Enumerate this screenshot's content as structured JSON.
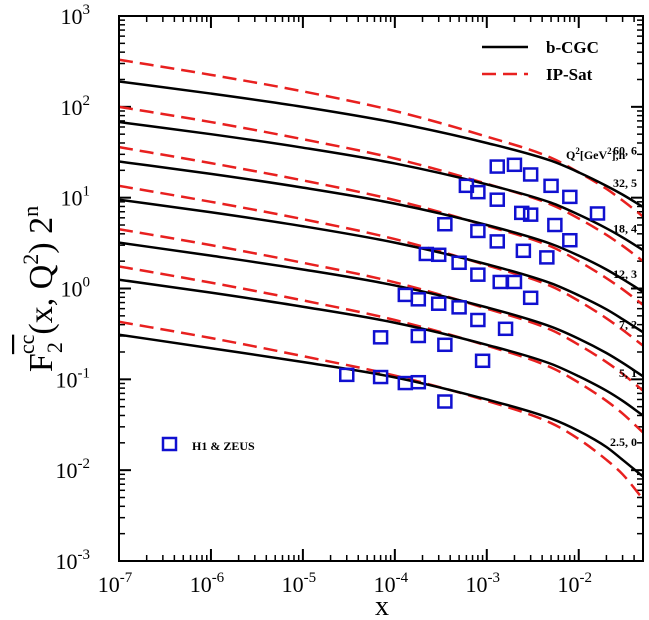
{
  "chart_data": {
    "type": "line",
    "xscale": "log",
    "yscale": "log",
    "xlim": [
      1e-07,
      0.05
    ],
    "ylim": [
      0.001,
      1000
    ],
    "xlabel": "x",
    "x_ticks": [
      {
        "base": "10",
        "exp": "-7",
        "value": 1e-07
      },
      {
        "base": "10",
        "exp": "-6",
        "value": 1e-06
      },
      {
        "base": "10",
        "exp": "-5",
        "value": 1e-05
      },
      {
        "base": "10",
        "exp": "-4",
        "value": 0.0001
      },
      {
        "base": "10",
        "exp": "-3",
        "value": 0.001
      },
      {
        "base": "10",
        "exp": "-2",
        "value": 0.01
      }
    ],
    "y_ticks": [
      {
        "base": "10",
        "exp": "-3",
        "value": 0.001
      },
      {
        "base": "10",
        "exp": "-2",
        "value": 0.01
      },
      {
        "base": "10",
        "exp": "-1",
        "value": 0.1
      },
      {
        "base": "10",
        "exp": "0",
        "value": 1
      },
      {
        "base": "10",
        "exp": "1",
        "value": 10
      },
      {
        "base": "10",
        "exp": "2",
        "value": 100
      },
      {
        "base": "10",
        "exp": "3",
        "value": 1000
      }
    ],
    "ylabel_parts": {
      "F": "F",
      "sub": "2",
      "cc": "cc",
      "rest": "(x, Q",
      "q_exp": "2",
      "close": ") 2",
      "n_exp": "n"
    },
    "legend": [
      {
        "name": "b-CGC",
        "style": "solid",
        "color": "#000000"
      },
      {
        "name": "IP-Sat",
        "style": "dashed",
        "color": "#e8201f"
      }
    ],
    "points_legend": {
      "name": "H1 & ZEUS",
      "color": "#1010d0"
    },
    "annotation_header": {
      "q": "Q",
      "q_exp": "2",
      "unit": "[GeV",
      "unit_exp": "2",
      "tail": "],n"
    },
    "series": [
      {
        "label": "2.5, 0",
        "label_y": 0.0205,
        "bcgc": [
          [
            1e-07,
            0.31
          ],
          [
            1e-06,
            0.22
          ],
          [
            1e-05,
            0.155
          ],
          [
            0.0001,
            0.105
          ],
          [
            0.001,
            0.06
          ],
          [
            0.005,
            0.037
          ],
          [
            0.01,
            0.027
          ],
          [
            0.02,
            0.018
          ],
          [
            0.03,
            0.013
          ],
          [
            0.05,
            0.0085
          ]
        ],
        "ipsat": [
          [
            1e-07,
            0.43
          ],
          [
            1e-06,
            0.285
          ],
          [
            1e-05,
            0.18
          ],
          [
            0.0001,
            0.11
          ],
          [
            0.001,
            0.058
          ],
          [
            0.005,
            0.033
          ],
          [
            0.01,
            0.022
          ],
          [
            0.02,
            0.013
          ],
          [
            0.03,
            0.009
          ],
          [
            0.05,
            0.0048
          ]
        ]
      },
      {
        "label": "5, 1",
        "label_y": 0.118,
        "bcgc": [
          [
            1e-07,
            1.25
          ],
          [
            1e-06,
            0.9
          ],
          [
            1e-05,
            0.63
          ],
          [
            0.0001,
            0.42
          ],
          [
            0.001,
            0.24
          ],
          [
            0.005,
            0.148
          ],
          [
            0.01,
            0.108
          ],
          [
            0.02,
            0.075
          ],
          [
            0.03,
            0.058
          ],
          [
            0.05,
            0.04
          ]
        ],
        "ipsat": [
          [
            1e-07,
            1.75
          ],
          [
            1e-06,
            1.16
          ],
          [
            1e-05,
            0.74
          ],
          [
            0.0001,
            0.45
          ],
          [
            0.001,
            0.235
          ],
          [
            0.005,
            0.135
          ],
          [
            0.01,
            0.092
          ],
          [
            0.02,
            0.058
          ],
          [
            0.03,
            0.042
          ],
          [
            0.05,
            0.026
          ]
        ]
      },
      {
        "label": "7, 2",
        "label_y": 0.4,
        "bcgc": [
          [
            1e-07,
            3.2
          ],
          [
            1e-06,
            2.3
          ],
          [
            1e-05,
            1.62
          ],
          [
            0.0001,
            1.08
          ],
          [
            0.001,
            0.62
          ],
          [
            0.005,
            0.38
          ],
          [
            0.01,
            0.28
          ],
          [
            0.02,
            0.195
          ],
          [
            0.03,
            0.152
          ],
          [
            0.05,
            0.108
          ]
        ],
        "ipsat": [
          [
            1e-07,
            4.5
          ],
          [
            1e-06,
            3.0
          ],
          [
            1e-05,
            1.92
          ],
          [
            0.0001,
            1.17
          ],
          [
            0.001,
            0.6
          ],
          [
            0.005,
            0.35
          ],
          [
            0.01,
            0.24
          ],
          [
            0.02,
            0.155
          ],
          [
            0.03,
            0.115
          ],
          [
            0.05,
            0.075
          ]
        ]
      },
      {
        "label": "12, 3",
        "label_y": 1.45,
        "bcgc": [
          [
            1e-07,
            9.5
          ],
          [
            1e-06,
            6.9
          ],
          [
            1e-05,
            4.85
          ],
          [
            0.0001,
            3.2
          ],
          [
            0.001,
            1.85
          ],
          [
            0.005,
            1.14
          ],
          [
            0.01,
            0.84
          ],
          [
            0.02,
            0.59
          ],
          [
            0.03,
            0.46
          ],
          [
            0.05,
            0.33
          ]
        ],
        "ipsat": [
          [
            1e-07,
            13.5
          ],
          [
            1e-06,
            9.0
          ],
          [
            1e-05,
            5.8
          ],
          [
            0.0001,
            3.5
          ],
          [
            0.001,
            1.8
          ],
          [
            0.005,
            1.06
          ],
          [
            0.01,
            0.73
          ],
          [
            0.02,
            0.47
          ],
          [
            0.03,
            0.35
          ],
          [
            0.05,
            0.235
          ]
        ]
      },
      {
        "label": "18, 4",
        "label_y": 4.6,
        "bcgc": [
          [
            1e-07,
            25
          ],
          [
            1e-06,
            18.3
          ],
          [
            1e-05,
            12.9
          ],
          [
            0.0001,
            8.6
          ],
          [
            0.001,
            5.0
          ],
          [
            0.005,
            3.1
          ],
          [
            0.01,
            2.3
          ],
          [
            0.02,
            1.62
          ],
          [
            0.03,
            1.27
          ],
          [
            0.05,
            0.92
          ]
        ],
        "ipsat": [
          [
            1e-07,
            36
          ],
          [
            1e-06,
            24
          ],
          [
            1e-05,
            15.5
          ],
          [
            0.0001,
            9.4
          ],
          [
            0.001,
            4.9
          ],
          [
            0.005,
            2.9
          ],
          [
            0.01,
            2.0
          ],
          [
            0.02,
            1.3
          ],
          [
            0.03,
            0.98
          ],
          [
            0.05,
            0.66
          ]
        ]
      },
      {
        "label": "32, 5",
        "label_y": 14.5,
        "bcgc": [
          [
            1e-07,
            68
          ],
          [
            1e-06,
            50
          ],
          [
            1e-05,
            35.5
          ],
          [
            0.0001,
            23.8
          ],
          [
            0.001,
            14.0
          ],
          [
            0.005,
            8.8
          ],
          [
            0.01,
            6.5
          ],
          [
            0.02,
            4.6
          ],
          [
            0.03,
            3.65
          ],
          [
            0.05,
            2.65
          ]
        ],
        "ipsat": [
          [
            1e-07,
            100
          ],
          [
            1e-06,
            68
          ],
          [
            1e-05,
            44
          ],
          [
            0.0001,
            27
          ],
          [
            0.001,
            14.2
          ],
          [
            0.005,
            8.4
          ],
          [
            0.01,
            5.9
          ],
          [
            0.02,
            3.9
          ],
          [
            0.03,
            2.95
          ],
          [
            0.05,
            2.0
          ]
        ]
      },
      {
        "label": "60, 6",
        "label_y": 33,
        "bcgc": [
          [
            1e-07,
            190
          ],
          [
            1e-06,
            140
          ],
          [
            1e-05,
            100
          ],
          [
            0.0001,
            67
          ],
          [
            0.001,
            40
          ],
          [
            0.005,
            25.5
          ],
          [
            0.01,
            19
          ],
          [
            0.02,
            13.5
          ],
          [
            0.03,
            10.8
          ],
          [
            0.05,
            7.9
          ]
        ],
        "ipsat": [
          [
            1e-07,
            330
          ],
          [
            1e-06,
            225
          ],
          [
            1e-05,
            148
          ],
          [
            0.0001,
            90
          ],
          [
            0.001,
            47
          ],
          [
            0.005,
            27.5
          ],
          [
            0.01,
            19
          ],
          [
            0.02,
            12.5
          ],
          [
            0.03,
            9.3
          ],
          [
            0.05,
            6.2
          ]
        ]
      }
    ],
    "data_points": [
      [
        3e-05,
        0.112
      ],
      [
        7e-05,
        0.106
      ],
      [
        0.00013,
        0.091
      ],
      [
        0.00018,
        0.093
      ],
      [
        0.00035,
        0.057
      ],
      [
        7e-05,
        0.29
      ],
      [
        0.00018,
        0.3
      ],
      [
        0.00035,
        0.24
      ],
      [
        0.0009,
        0.16
      ],
      [
        0.00013,
        0.85
      ],
      [
        0.00018,
        0.76
      ],
      [
        0.0003,
        0.68
      ],
      [
        0.0005,
        0.62
      ],
      [
        0.0008,
        0.45
      ],
      [
        0.0016,
        0.36
      ],
      [
        0.00022,
        2.4
      ],
      [
        0.0003,
        2.35
      ],
      [
        0.0005,
        1.92
      ],
      [
        0.0008,
        1.42
      ],
      [
        0.0014,
        1.18
      ],
      [
        0.002,
        1.18
      ],
      [
        0.003,
        0.79
      ],
      [
        0.00035,
        5.1
      ],
      [
        0.0008,
        4.3
      ],
      [
        0.0013,
        3.3
      ],
      [
        0.0025,
        2.6
      ],
      [
        0.0045,
        2.2
      ],
      [
        0.0006,
        13.5
      ],
      [
        0.0008,
        11.5
      ],
      [
        0.0013,
        9.5
      ],
      [
        0.0024,
        6.8
      ],
      [
        0.003,
        6.5
      ],
      [
        0.0055,
        5.0
      ],
      [
        0.008,
        3.4
      ],
      [
        0.0013,
        22
      ],
      [
        0.002,
        23
      ],
      [
        0.003,
        18
      ],
      [
        0.005,
        13.5
      ],
      [
        0.008,
        10.2
      ],
      [
        0.016,
        6.7
      ]
    ]
  }
}
